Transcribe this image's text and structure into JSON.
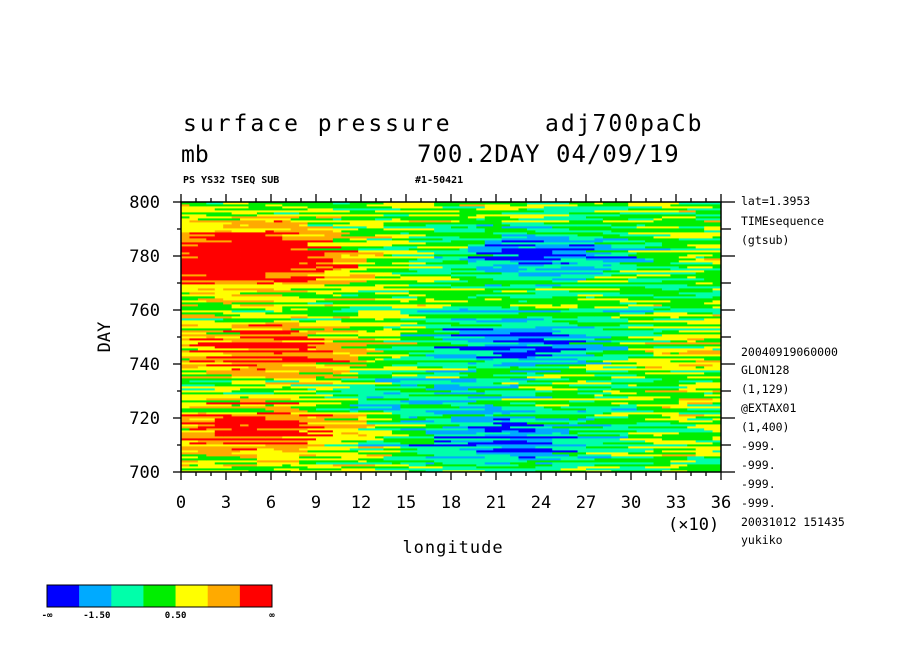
{
  "chart_data": {
    "type": "heatmap",
    "title": "surface pressure",
    "title_right": "adj700paCb",
    "units": "mb",
    "subtitle_right": "700.2DAY 04/09/19",
    "small_left": "PS YS32 TSEQ SUB",
    "small_center": "#1-50421",
    "xlabel": "longitude",
    "ylabel": "DAY",
    "x_multiplier": "(×10)",
    "xlim": [
      0,
      36
    ],
    "ylim": [
      700,
      800
    ],
    "x_ticks": [
      "0",
      "3",
      "6",
      "9",
      "12",
      "15",
      "18",
      "21",
      "24",
      "27",
      "30",
      "33",
      "36"
    ],
    "y_ticks": [
      "700",
      "720",
      "740",
      "760",
      "780",
      "800"
    ],
    "colorbar": {
      "colors": [
        "#0000ff",
        "#00aaff",
        "#00ffaa",
        "#00ee00",
        "#ffff00",
        "#ffaa00",
        "#ff0000"
      ],
      "labels": [
        "-∞",
        "-1.50",
        "0.50",
        "∞"
      ]
    },
    "field_regions": [
      {
        "x": 4,
        "y": 785,
        "value": 2.5
      },
      {
        "x": 4,
        "y": 776,
        "value": 3.0
      },
      {
        "x": 6,
        "y": 745,
        "value": 3.0
      },
      {
        "x": 5,
        "y": 715,
        "value": 3.0
      },
      {
        "x": 24,
        "y": 780,
        "value": -3.0
      },
      {
        "x": 23,
        "y": 748,
        "value": -3.0
      },
      {
        "x": 22,
        "y": 712,
        "value": -3.0
      },
      {
        "x": 17,
        "y": 727,
        "value": -1.5
      },
      {
        "x": 34,
        "y": 745,
        "value": 0.8
      }
    ]
  },
  "side_info": [
    "lat=1.3953",
    "TIMEsequence",
    "(gtsub)",
    "20040919060000",
    "GLON128",
    "(1,129)",
    "@EXTAX01",
    "(1,400)",
    "-999.",
    "-999.",
    "-999.",
    "-999.",
    "20031012 151435",
    "yukiko"
  ]
}
